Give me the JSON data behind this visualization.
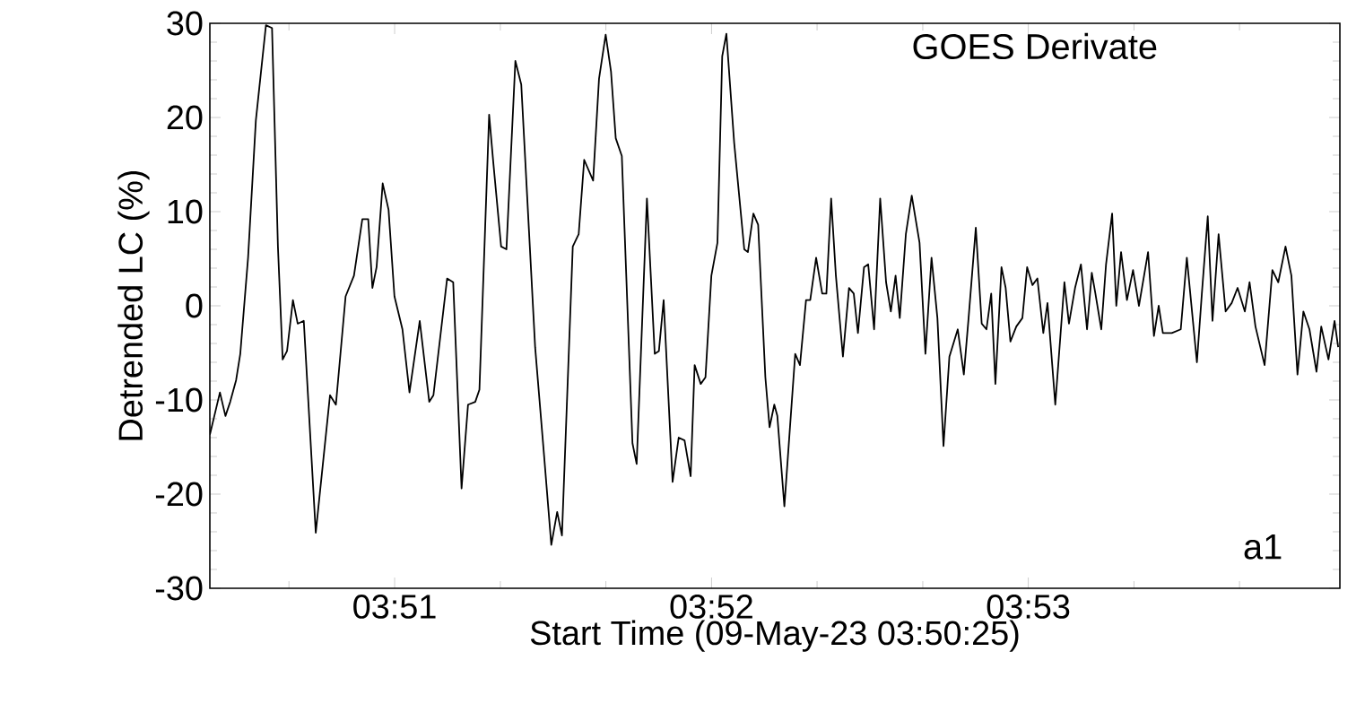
{
  "chart_data": {
    "type": "line",
    "title": "GOES Derivate",
    "xlabel": "Start Time (09-May-23 03:50:25)",
    "ylabel": "Detrended LC (%)",
    "annotations": [
      "a1"
    ],
    "xlim": [
      3.84028,
      3.89972
    ],
    "ylim": [
      -30,
      30
    ],
    "xticks": [
      {
        "value": 3.84444,
        "label": null
      },
      {
        "value": 3.85,
        "label": "03:51"
      },
      {
        "value": 3.85556,
        "label": null
      },
      {
        "value": 3.86111,
        "label": null
      },
      {
        "value": 3.86667,
        "label": "03:52"
      },
      {
        "value": 3.87222,
        "label": null
      },
      {
        "value": 3.87778,
        "label": null
      },
      {
        "value": 3.88333,
        "label": "03:53"
      },
      {
        "value": 3.88889,
        "label": null
      },
      {
        "value": 3.89444,
        "label": null
      }
    ],
    "yticks": [
      -30,
      -20,
      -10,
      0,
      10,
      20,
      30
    ],
    "series": [
      {
        "color": "#000000",
        "x": [
          3.84028,
          3.84081,
          3.8411,
          3.84135,
          3.84166,
          3.84188,
          3.84229,
          3.8427,
          3.84323,
          3.84355,
          3.84386,
          3.84411,
          3.84434,
          3.84465,
          3.8449,
          3.84522,
          3.84585,
          3.8466,
          3.84691,
          3.84742,
          3.84786,
          3.8483,
          3.84861,
          3.84883,
          3.84905,
          3.84937,
          3.84968,
          3.84999,
          3.85041,
          3.85078,
          3.85132,
          3.85182,
          3.85204,
          3.85276,
          3.85308,
          3.85352,
          3.85386,
          3.85424,
          3.85446,
          3.85497,
          3.85519,
          3.8556,
          3.85588,
          3.85635,
          3.85666,
          3.85739,
          3.85786,
          3.85824,
          3.85855,
          3.8588,
          3.85937,
          3.85968,
          3.85997,
          3.86044,
          3.86075,
          3.8611,
          3.86138,
          3.86163,
          3.86195,
          3.86251,
          3.86273,
          3.86327,
          3.86368,
          3.8639,
          3.86415,
          3.86462,
          3.86494,
          3.86525,
          3.86557,
          3.86578,
          3.8661,
          3.86635,
          3.86666,
          3.86698,
          3.86723,
          3.86745,
          3.86786,
          3.86839,
          3.86858,
          3.86887,
          3.86912,
          3.8695,
          3.86972,
          3.86997,
          3.87013,
          3.8705,
          3.87107,
          3.87132,
          3.87164,
          3.87186,
          3.87217,
          3.87249,
          3.87271,
          3.87296,
          3.87321,
          3.87358,
          3.8739,
          3.87415,
          3.87437,
          3.87469,
          3.87491,
          3.87522,
          3.87554,
          3.87585,
          3.8761,
          3.87635,
          3.87657,
          3.87689,
          3.8772,
          3.87761,
          3.87792,
          3.87824,
          3.87855,
          3.87887,
          3.87918,
          3.87962,
          3.87994,
          3.88019,
          3.88057,
          3.88088,
          3.88113,
          3.88138,
          3.8816,
          3.88192,
          3.88214,
          3.88239,
          3.8827,
          3.88302,
          3.88327,
          3.88355,
          3.88381,
          3.88412,
          3.88434,
          3.88475,
          3.88523,
          3.88547,
          3.88579,
          3.8861,
          3.88642,
          3.88667,
          3.88686,
          3.88717,
          3.88742,
          3.88774,
          3.88796,
          3.88821,
          3.88852,
          3.88884,
          3.88915,
          3.88963,
          3.88994,
          3.89019,
          3.89041,
          3.89088,
          3.89135,
          3.89167,
          3.8922,
          3.89246,
          3.89277,
          3.89302,
          3.89334,
          3.89371,
          3.89403,
          3.89434,
          3.89472,
          3.89497,
          3.89528,
          3.89576,
          3.89617,
          3.89648,
          3.89686,
          3.89717,
          3.89749,
          3.8978,
          3.89812,
          3.89849,
          3.89874,
          3.89912,
          3.89944,
          3.89963
        ],
        "values": [
          -13.7,
          -9.2,
          -11.7,
          -10.2,
          -7.9,
          -5.1,
          5.1,
          19.7,
          29.8,
          29.5,
          6.3,
          -5.7,
          -4.8,
          0.6,
          -1.9,
          -1.6,
          -24.1,
          -9.5,
          -10.5,
          1.0,
          3.2,
          9.2,
          9.2,
          1.9,
          4.1,
          13.0,
          10.2,
          1.0,
          -2.5,
          -9.2,
          -1.6,
          -10.2,
          -9.5,
          2.9,
          2.5,
          -19.4,
          -10.5,
          -10.2,
          -8.9,
          20.3,
          15.2,
          6.3,
          6.0,
          26.0,
          23.5,
          -4.4,
          -15.9,
          -25.4,
          -21.9,
          -24.4,
          6.3,
          7.6,
          15.5,
          13.3,
          24.1,
          28.8,
          24.9,
          17.8,
          15.9,
          -14.6,
          -16.8,
          11.4,
          -5.1,
          -4.8,
          0.6,
          -18.7,
          -14.0,
          -14.3,
          -18.1,
          -6.3,
          -8.3,
          -7.6,
          3.2,
          6.7,
          26.5,
          28.9,
          17.3,
          6.0,
          5.7,
          9.8,
          8.6,
          -7.6,
          -12.9,
          -10.5,
          -11.7,
          -21.3,
          -5.1,
          -6.3,
          0.6,
          0.6,
          5.1,
          1.3,
          1.3,
          11.4,
          3.2,
          -5.4,
          1.9,
          1.3,
          -2.9,
          4.1,
          4.4,
          -2.5,
          11.4,
          2.5,
          -0.6,
          3.2,
          -1.3,
          7.6,
          11.7,
          6.7,
          -5.1,
          5.1,
          -1.3,
          -14.9,
          -5.4,
          -2.5,
          -7.3,
          -1.3,
          8.3,
          -1.9,
          -2.5,
          1.3,
          -8.3,
          4.1,
          1.9,
          -3.8,
          -2.2,
          -1.3,
          4.1,
          2.2,
          2.9,
          -2.9,
          0.3,
          -10.5,
          2.5,
          -1.9,
          1.9,
          4.4,
          -2.5,
          3.5,
          1.3,
          -2.5,
          4.4,
          9.8,
          0,
          5.7,
          0.6,
          3.8,
          0,
          5.7,
          -3.2,
          0,
          -2.9,
          -2.9,
          -2.5,
          5.1,
          -6.0,
          1.3,
          9.5,
          -1.6,
          7.6,
          -0.6,
          0.3,
          1.9,
          -0.6,
          2.5,
          -2.2,
          -6.3,
          3.8,
          2.5,
          6.3,
          3.2,
          -7.3,
          -0.6,
          -2.5,
          -7.0,
          -2.2,
          -5.7,
          -1.6,
          -4.4
        ]
      }
    ]
  }
}
